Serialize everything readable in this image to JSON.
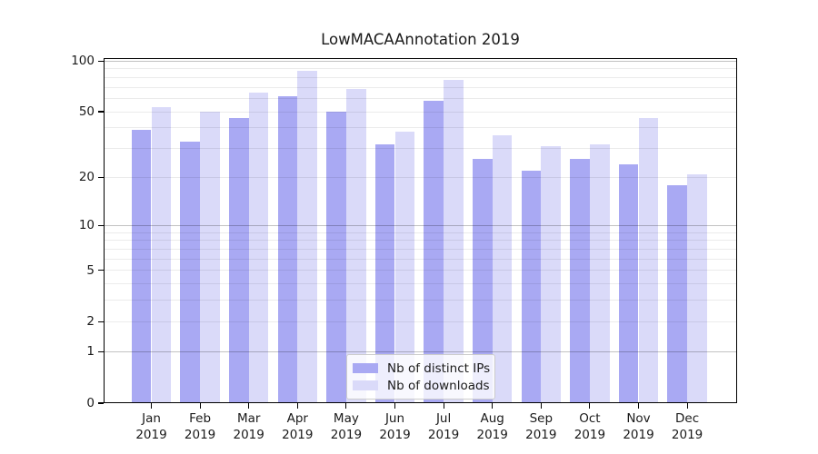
{
  "chart_data": {
    "type": "bar",
    "title": "LowMACAAnnotation 2019",
    "categories": [
      "Jan 2019",
      "Feb 2019",
      "Mar 2019",
      "Apr 2019",
      "May 2019",
      "Jun 2019",
      "Jul 2019",
      "Aug 2019",
      "Sep 2019",
      "Oct 2019",
      "Nov 2019",
      "Dec 2019"
    ],
    "series": [
      {
        "name": "Nb of distinct IPs",
        "color": "#a9a9f3",
        "values": [
          39,
          33,
          46,
          62,
          50,
          32,
          58,
          26,
          22,
          26,
          24,
          18
        ]
      },
      {
        "name": "Nb of downloads",
        "color": "#dadaf9",
        "values": [
          53,
          50,
          65,
          88,
          68,
          38,
          77,
          36,
          31,
          32,
          46,
          21
        ]
      }
    ],
    "xlabel": "",
    "ylabel": "",
    "yscale": "log1p",
    "ylim": [
      0,
      101
    ],
    "y_ticks": [
      {
        "value": 100,
        "label": "100"
      },
      {
        "value": 50,
        "label": "50"
      },
      {
        "value": 20,
        "label": "20"
      },
      {
        "value": 10,
        "label": "10"
      },
      {
        "value": 5,
        "label": "5"
      },
      {
        "value": 2,
        "label": "2"
      },
      {
        "value": 1,
        "label": "1"
      },
      {
        "value": 0,
        "label": "0"
      }
    ],
    "grid": {
      "major_values": [
        1,
        10,
        100
      ],
      "minor_values": [
        2,
        3,
        4,
        5,
        6,
        7,
        8,
        9,
        20,
        30,
        40,
        50,
        60,
        70,
        80,
        90
      ]
    },
    "legend_position": "lower center"
  },
  "colors": {
    "background": "#ffffff",
    "bar_distinct_ips": "#a9a9f3",
    "bar_downloads": "#dadaf9",
    "grid_major": "rgba(0,0,0,0.24)",
    "grid_minor": "rgba(0,0,0,0.08)",
    "spine": "#000000",
    "text": "#1a1a1a",
    "legend_border": "#cccccc"
  }
}
